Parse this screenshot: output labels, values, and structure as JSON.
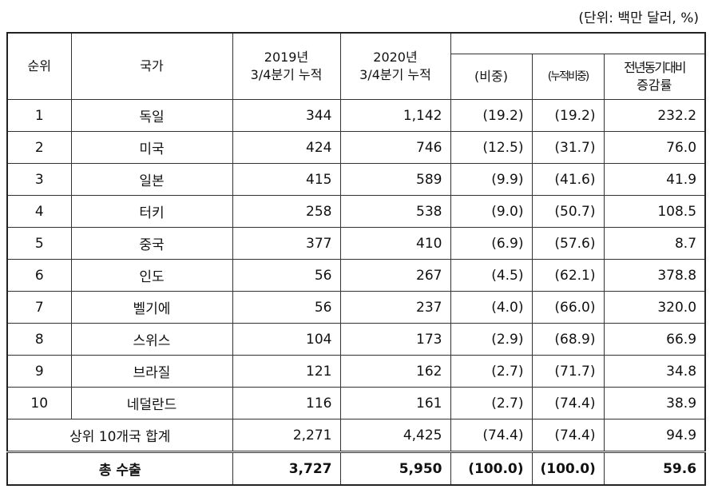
{
  "unit": "(단위: 백만 달러, %)",
  "header": {
    "rank": "순위",
    "country": "국가",
    "y2019": [
      "2019년",
      "3/4분기 누적"
    ],
    "y2020": [
      "2020년",
      "3/4분기 누적"
    ],
    "share": "(비중)",
    "cum_share": "(누적비중)",
    "growth": [
      "전년동기대비",
      "증감률"
    ]
  },
  "rows": [
    [
      "1",
      "독일",
      "344",
      "1,142",
      "(19.2)",
      "(19.2)",
      "232.2"
    ],
    [
      "2",
      "미국",
      "424",
      "746",
      "(12.5)",
      "(31.7)",
      "76.0"
    ],
    [
      "3",
      "일본",
      "415",
      "589",
      "(9.9)",
      "(41.6)",
      "41.9"
    ],
    [
      "4",
      "터키",
      "258",
      "538",
      "(9.0)",
      "(50.7)",
      "108.5"
    ],
    [
      "5",
      "중국",
      "377",
      "410",
      "(6.9)",
      "(57.6)",
      "8.7"
    ],
    [
      "6",
      "인도",
      "56",
      "267",
      "(4.5)",
      "(62.1)",
      "378.8"
    ],
    [
      "7",
      "벨기에",
      "56",
      "237",
      "(4.0)",
      "(66.0)",
      "320.0"
    ],
    [
      "8",
      "스위스",
      "104",
      "173",
      "(2.9)",
      "(68.9)",
      "66.9"
    ],
    [
      "9",
      "브라질",
      "121",
      "162",
      "(2.7)",
      "(71.7)",
      "34.8"
    ],
    [
      "10",
      "네덜란드",
      "116",
      "161",
      "(2.7)",
      "(74.4)",
      "38.9"
    ]
  ],
  "subtotal": [
    "상위 10개국 합계",
    "2,271",
    "4,425",
    "(74.4)",
    "(74.4)",
    "94.9"
  ],
  "total": [
    "총 수출",
    "3,727",
    "5,950",
    "(100.0)",
    "(100.0)",
    "59.6"
  ]
}
